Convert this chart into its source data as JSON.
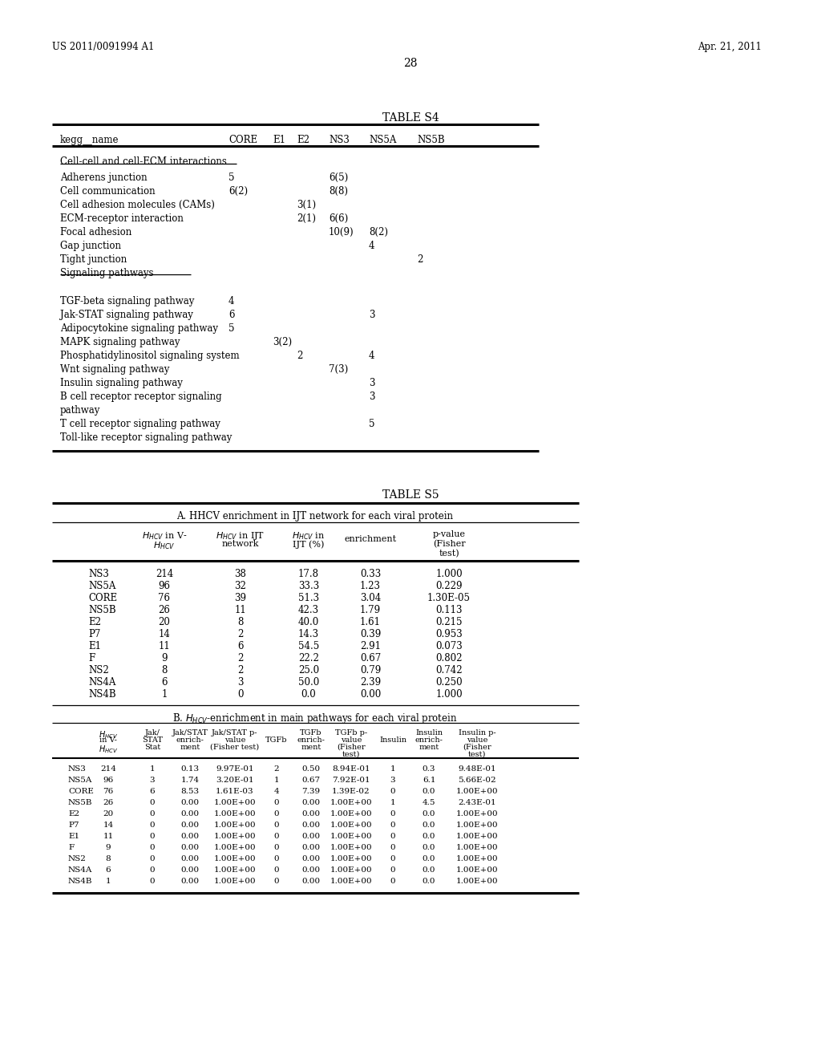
{
  "patent_number": "US 2011/0091994 A1",
  "date": "Apr. 21, 2011",
  "page_number": "28",
  "background_color": "#ffffff",
  "table_s4": {
    "title": "TABLE S4",
    "col_labels": [
      "kegg__name",
      "CORE",
      "E1",
      "E2",
      "NS3",
      "NS5A",
      "NS5B"
    ],
    "section1_header": "Cell-cell and cell-ECM interactions",
    "section1_rows": [
      [
        "Adherens junction",
        "5",
        "",
        "",
        "6(5)",
        "",
        ""
      ],
      [
        "Cell communication",
        "6(2)",
        "",
        "",
        "8(8)",
        "",
        ""
      ],
      [
        "Cell adhesion molecules (CAMs)",
        "",
        "",
        "3(1)",
        "",
        "",
        ""
      ],
      [
        "ECM-receptor interaction",
        "",
        "",
        "2(1)",
        "6(6)",
        "",
        ""
      ],
      [
        "Focal adhesion",
        "",
        "",
        "",
        "10(9)",
        "8(2)",
        ""
      ],
      [
        "Gap junction",
        "",
        "",
        "",
        "",
        "4",
        ""
      ],
      [
        "Tight junction",
        "",
        "",
        "",
        "",
        "",
        "2"
      ],
      [
        "Signaling pathways",
        "",
        "",
        "",
        "",
        "",
        ""
      ]
    ],
    "section2_rows": [
      [
        "TGF-beta signaling pathway",
        "4",
        "",
        "",
        "",
        "",
        ""
      ],
      [
        "Jak-STAT signaling pathway",
        "6",
        "",
        "",
        "",
        "3",
        ""
      ],
      [
        "Adipocytokine signaling pathway",
        "5",
        "",
        "",
        "",
        "",
        ""
      ],
      [
        "MAPK signaling pathway",
        "",
        "3(2)",
        "",
        "",
        "",
        ""
      ],
      [
        "Phosphatidylinositol signaling system",
        "",
        "",
        "2",
        "",
        "4",
        ""
      ],
      [
        "Wnt signaling pathway",
        "",
        "",
        "",
        "7(3)",
        "",
        ""
      ],
      [
        "Insulin signaling pathway",
        "",
        "",
        "",
        "",
        "3",
        ""
      ],
      [
        "B cell receptor receptor signaling",
        "",
        "",
        "",
        "",
        "3",
        ""
      ],
      [
        "pathway",
        "",
        "",
        "",
        "",
        "",
        ""
      ],
      [
        "T cell receptor signaling pathway",
        "",
        "",
        "",
        "",
        "5",
        ""
      ],
      [
        "Toll-like receptor signaling pathway",
        "",
        "",
        "",
        "",
        "",
        ""
      ]
    ]
  },
  "table_s5": {
    "title": "TABLE S5",
    "section_a_title": "A. HHCV enrichment in IJT network for each viral protein",
    "section_a_rows": [
      [
        "NS3",
        "214",
        "38",
        "17.8",
        "0.33",
        "1.000"
      ],
      [
        "NS5A",
        "96",
        "32",
        "33.3",
        "1.23",
        "0.229"
      ],
      [
        "CORE",
        "76",
        "39",
        "51.3",
        "3.04",
        "1.30E-05"
      ],
      [
        "NS5B",
        "26",
        "11",
        "42.3",
        "1.79",
        "0.113"
      ],
      [
        "E2",
        "20",
        "8",
        "40.0",
        "1.61",
        "0.215"
      ],
      [
        "P7",
        "14",
        "2",
        "14.3",
        "0.39",
        "0.953"
      ],
      [
        "E1",
        "11",
        "6",
        "54.5",
        "2.91",
        "0.073"
      ],
      [
        "F",
        "9",
        "2",
        "22.2",
        "0.67",
        "0.802"
      ],
      [
        "NS2",
        "8",
        "2",
        "25.0",
        "0.79",
        "0.742"
      ],
      [
        "NS4A",
        "6",
        "3",
        "50.0",
        "2.39",
        "0.250"
      ],
      [
        "NS4B",
        "1",
        "0",
        "0.0",
        "0.00",
        "1.000"
      ]
    ],
    "section_b_title": "B. H_HCV-enrichment in main pathways for each viral protein",
    "section_b_rows": [
      [
        "NS3",
        "214",
        "1",
        "0.13",
        "9.97E-01",
        "2",
        "0.50",
        "8.94E-01",
        "1",
        "0.3",
        "9.48E-01"
      ],
      [
        "NS5A",
        "96",
        "3",
        "1.74",
        "3.20E-01",
        "1",
        "0.67",
        "7.92E-01",
        "3",
        "6.1",
        "5.66E-02"
      ],
      [
        "CORE",
        "76",
        "6",
        "8.53",
        "1.61E-03",
        "4",
        "7.39",
        "1.39E-02",
        "0",
        "0.0",
        "1.00E+00"
      ],
      [
        "NS5B",
        "26",
        "0",
        "0.00",
        "1.00E+00",
        "0",
        "0.00",
        "1.00E+00",
        "1",
        "4.5",
        "2.43E-01"
      ],
      [
        "E2",
        "20",
        "0",
        "0.00",
        "1.00E+00",
        "0",
        "0.00",
        "1.00E+00",
        "0",
        "0.0",
        "1.00E+00"
      ],
      [
        "P7",
        "14",
        "0",
        "0.00",
        "1.00E+00",
        "0",
        "0.00",
        "1.00E+00",
        "0",
        "0.0",
        "1.00E+00"
      ],
      [
        "E1",
        "11",
        "0",
        "0.00",
        "1.00E+00",
        "0",
        "0.00",
        "1.00E+00",
        "0",
        "0.0",
        "1.00E+00"
      ],
      [
        "F",
        "9",
        "0",
        "0.00",
        "1.00E+00",
        "0",
        "0.00",
        "1.00E+00",
        "0",
        "0.0",
        "1.00E+00"
      ],
      [
        "NS2",
        "8",
        "0",
        "0.00",
        "1.00E+00",
        "0",
        "0.00",
        "1.00E+00",
        "0",
        "0.0",
        "1.00E+00"
      ],
      [
        "NS4A",
        "6",
        "0",
        "0.00",
        "1.00E+00",
        "0",
        "0.00",
        "1.00E+00",
        "0",
        "0.0",
        "1.00E+00"
      ],
      [
        "NS4B",
        "1",
        "0",
        "0.00",
        "1.00E+00",
        "0",
        "0.00",
        "1.00E+00",
        "0",
        "0.0",
        "1.00E+00"
      ]
    ]
  }
}
